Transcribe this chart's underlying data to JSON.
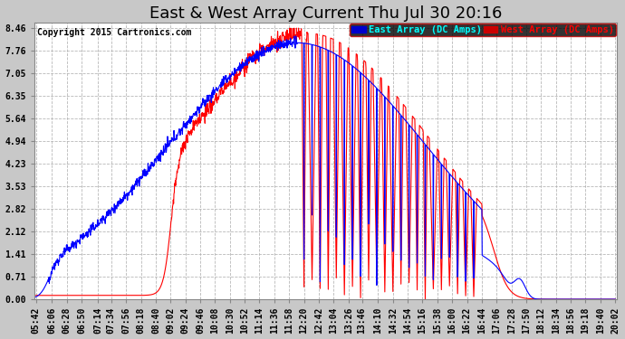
{
  "title": "East & West Array Current Thu Jul 30 20:16",
  "copyright": "Copyright 2015 Cartronics.com",
  "yticks": [
    0.0,
    0.71,
    1.41,
    2.12,
    2.82,
    3.53,
    4.23,
    4.94,
    5.64,
    6.35,
    7.05,
    7.76,
    8.46
  ],
  "xlabels": [
    "05:42",
    "06:06",
    "06:28",
    "06:50",
    "07:14",
    "07:34",
    "07:56",
    "08:18",
    "08:40",
    "09:02",
    "09:24",
    "09:46",
    "10:08",
    "10:30",
    "10:52",
    "11:14",
    "11:36",
    "11:58",
    "12:20",
    "12:42",
    "13:04",
    "13:26",
    "13:46",
    "14:10",
    "14:32",
    "14:54",
    "15:16",
    "15:38",
    "16:00",
    "16:22",
    "16:44",
    "17:06",
    "17:28",
    "17:50",
    "18:12",
    "18:34",
    "18:56",
    "19:18",
    "19:40",
    "20:02"
  ],
  "east_color": "#0000ff",
  "west_color": "#ff0000",
  "east_label": "East Array (DC Amps)",
  "west_label": "West Array (DC Amps)",
  "bg_color": "#c8c8c8",
  "plot_bg_color": "#ffffff",
  "grid_color": "#b0b0b0",
  "title_fontsize": 13,
  "copyright_fontsize": 7,
  "tick_fontsize": 7,
  "legend_fontsize": 7.5,
  "ymax": 8.46
}
